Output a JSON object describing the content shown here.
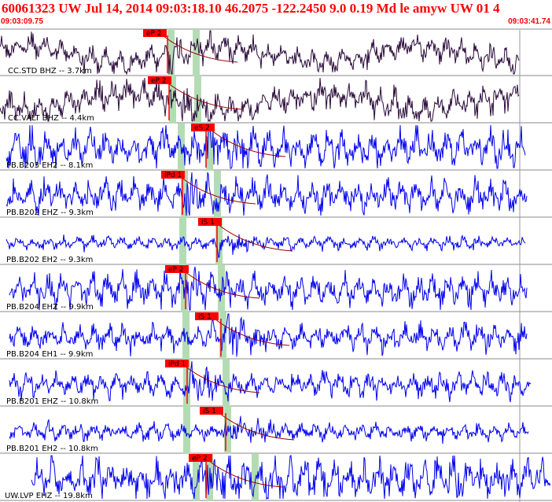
{
  "header": {
    "event_title": "60061323 UW Jul 14, 2014 09:03:18.10    46.2075 -122.2450  9.0 0.19 Md le amyw UW 01    4",
    "start_time": "09:03:09.75",
    "end_time": "09:03:41.74"
  },
  "colors": {
    "header_text": "#ff0000",
    "trace_dark": "#2a0a3a",
    "trace_blue": "#0000ee",
    "pick_flag": "#ff0000",
    "green_band": "#b4dcb4",
    "theoretical_curve": "#990000"
  },
  "traces": [
    {
      "label": "CC.STD BHZ -- 3.7km",
      "pick": "eP 2",
      "style": "dark"
    },
    {
      "label": "CC.VALT BHZ -- 4.4km",
      "pick": "eP 2",
      "style": "dark"
    },
    {
      "label": "PB.B203 EH2 -- 8.1km",
      "pick": "eS 2",
      "style": "blue"
    },
    {
      "label": "PB.B202 EHZ -- 9.3km",
      "pick": "iPd 1",
      "style": "blue"
    },
    {
      "label": "PB.B202 EH2 -- 9.3km",
      "pick": "iS 1",
      "style": "blue"
    },
    {
      "label": "PB.B204 EHZ -- 9.9km",
      "pick": "eP 2",
      "style": "blue"
    },
    {
      "label": "PB.B204 EH1 -- 9.9km",
      "pick": "iS 1",
      "style": "blue"
    },
    {
      "label": "PB.B201 EHZ -- 10.8km",
      "pick": "iPd 1",
      "style": "blue"
    },
    {
      "label": "PB.B201 EH2 -- 10.8km",
      "pick": "iS 1",
      "style": "blue"
    },
    {
      "label": "UW.LVP EHZ -- 19.8km",
      "pick": "eP 2",
      "style": "blue"
    }
  ]
}
